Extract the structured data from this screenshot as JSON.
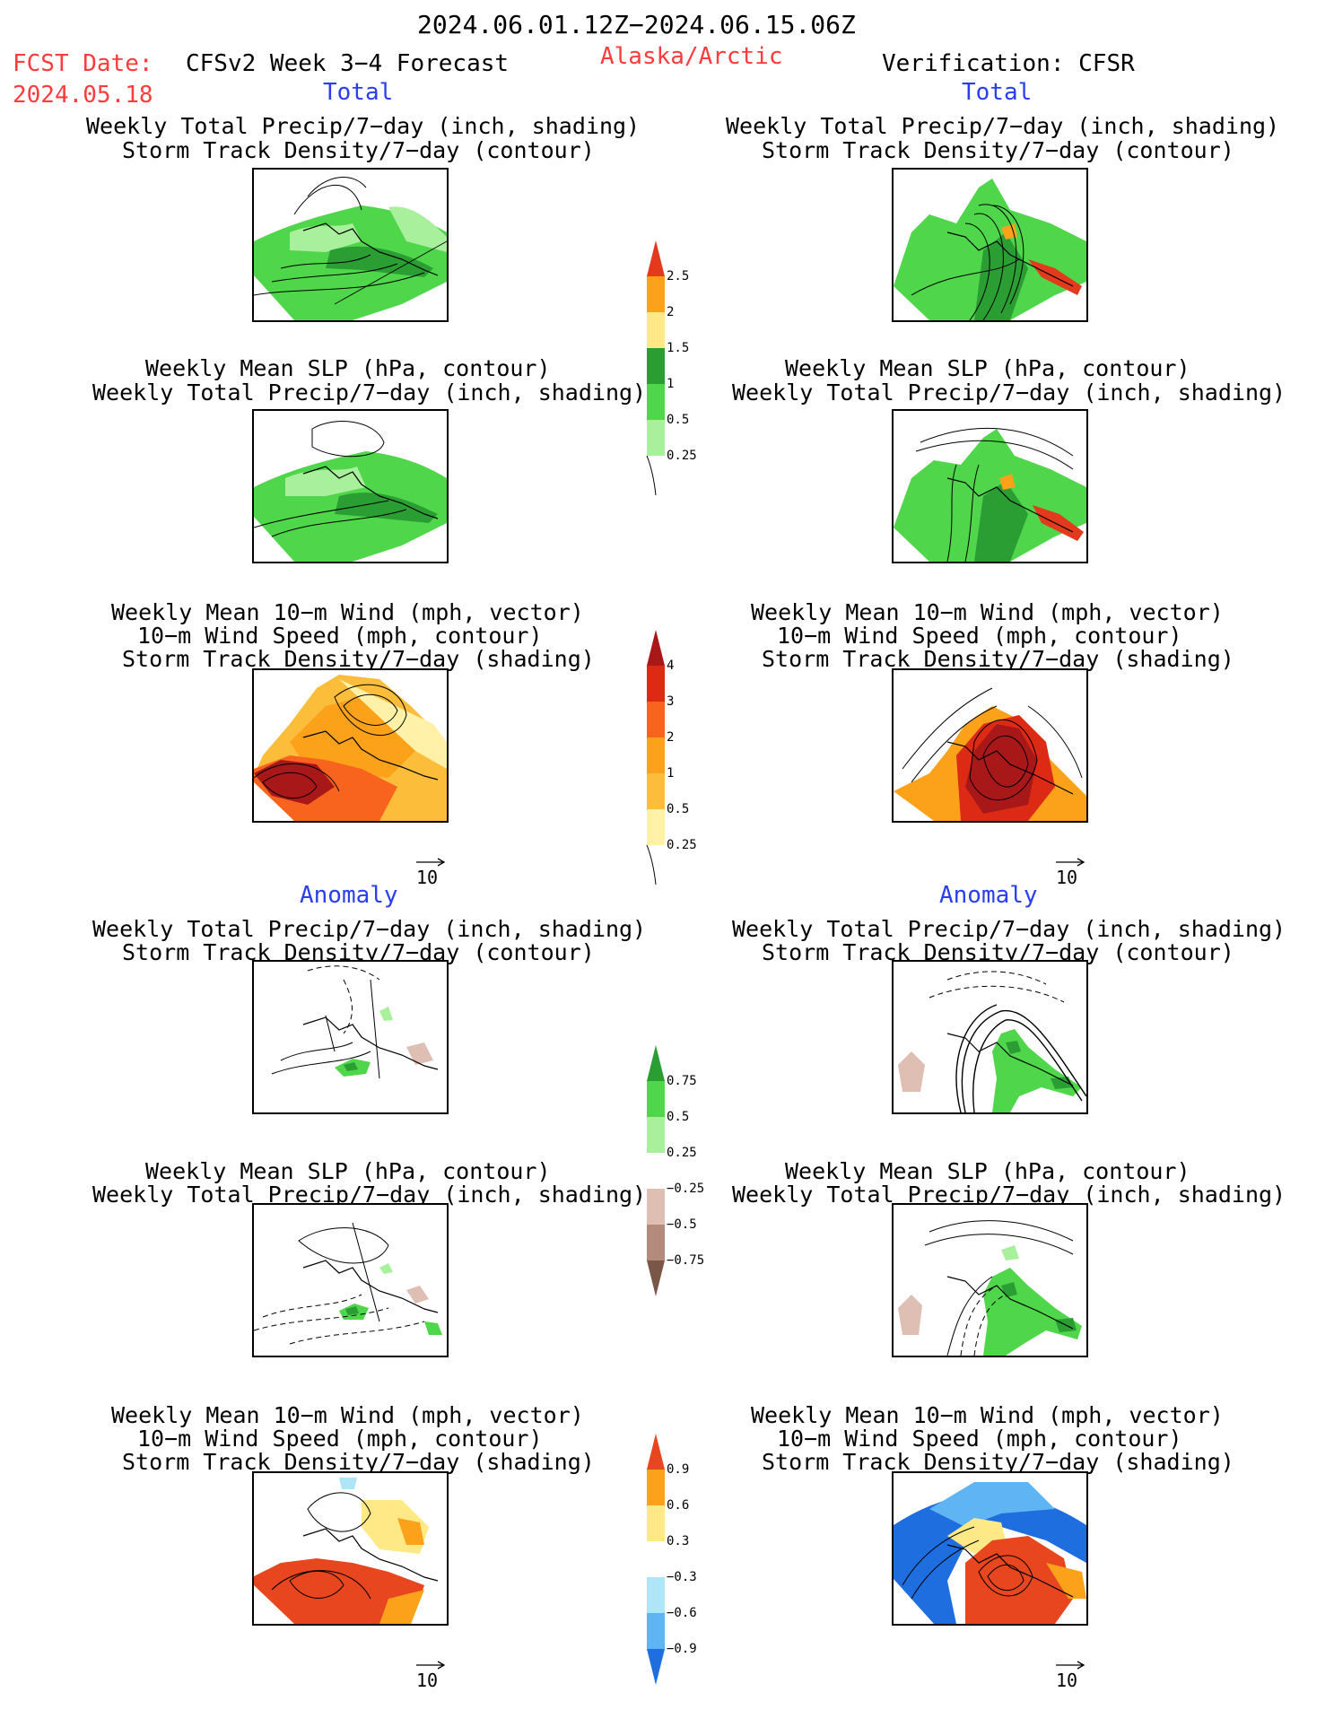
{
  "header": {
    "date_range": "2024.06.01.12Z−2024.06.15.06Z",
    "fcst_label": "FCST Date:",
    "fcst_date": "2024.05.18",
    "product": "CFSv2 Week 3−4 Forecast",
    "region": "Alaska/Arctic",
    "verification": "Verification: CFSR"
  },
  "sections": {
    "total_label": "Total",
    "anomaly_label": "Anomaly"
  },
  "titles": {
    "precip_storm": [
      "Weekly Total Precip/7−day (inch, shading)",
      "Storm Track Density/7−day (contour)"
    ],
    "slp_precip": [
      "Weekly Mean SLP (hPa, contour)",
      "Weekly Total Precip/7−day (inch, shading)"
    ],
    "wind_storm": [
      "Weekly Mean 10−m Wind (mph, vector)",
      "10−m Wind Speed (mph, contour)",
      "Storm Track Density/7−day (shading)"
    ]
  },
  "vector_ref": "10",
  "colorbars": {
    "precip_total": {
      "labels": [
        "2.5",
        "2",
        "1.5",
        "1",
        "0.5",
        "0.25"
      ],
      "colors": [
        "#e33a1e",
        "#fba21a",
        "#fee986",
        "#2b9e33",
        "#4fd64a",
        "#a8f09b"
      ]
    },
    "storm_total": {
      "labels": [
        "4",
        "3",
        "2",
        "1",
        "0.5",
        "0.25"
      ],
      "colors": [
        "#a81818",
        "#dc2a14",
        "#f8641e",
        "#fba21a",
        "#fbbd3a",
        "#fff2a8"
      ]
    },
    "precip_anom": {
      "labels": [
        "0.75",
        "0.5",
        "0.25",
        "−0.25",
        "−0.5",
        "−0.75"
      ],
      "colors": [
        "#2b9e33",
        "#4fd64a",
        "#a8f09b",
        "#ffffff",
        "#dfbeb4",
        "#b38a7c",
        "#7a5648"
      ]
    },
    "storm_anom": {
      "labels": [
        "0.9",
        "0.6",
        "0.3",
        "−0.3",
        "−0.6",
        "−0.9"
      ],
      "colors": [
        "#e7461e",
        "#fba21a",
        "#fee986",
        "#ffffff",
        "#aee6f8",
        "#5fb4f4",
        "#1e6ee0"
      ]
    }
  }
}
